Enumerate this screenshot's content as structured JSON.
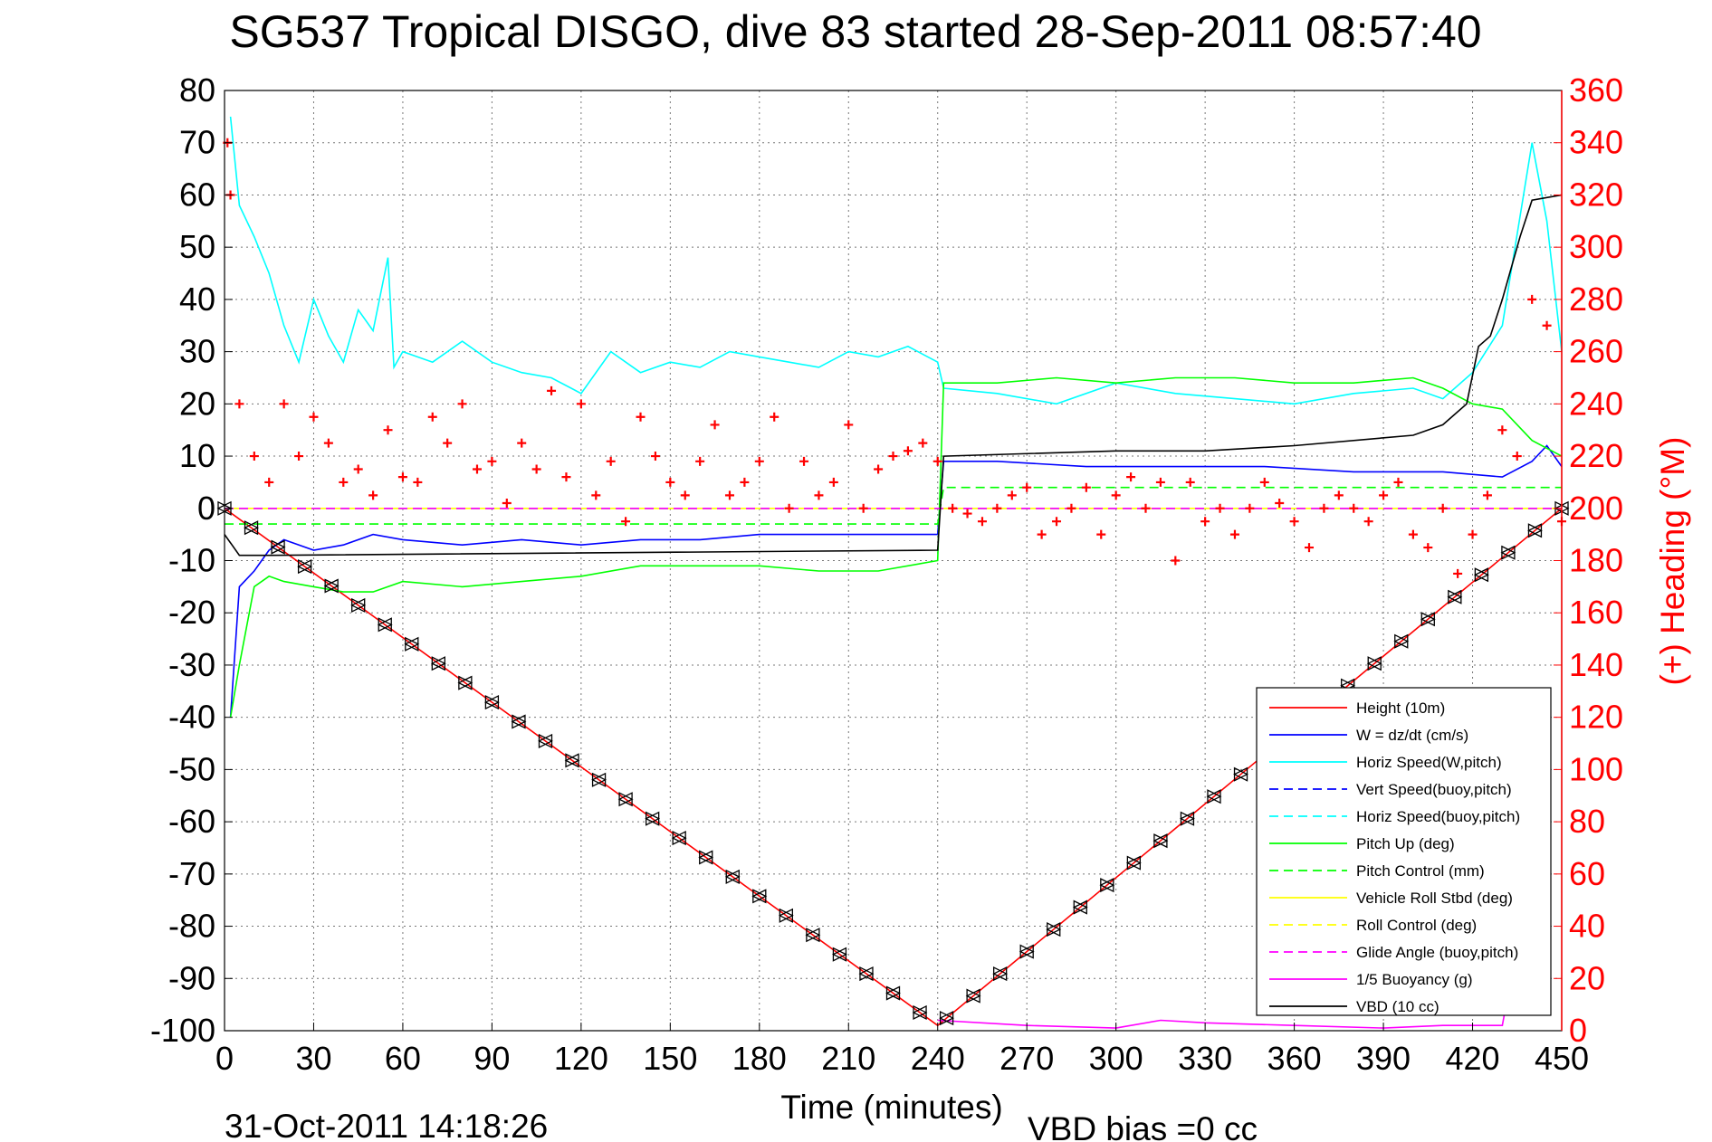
{
  "chart_data": {
    "type": "line",
    "title": "SG537 Tropical DISGO, dive 83 started 28-Sep-2011 08:57:40",
    "xlabel": "Time (minutes)",
    "ylabel_right": "(+) Heading (°M)",
    "footer_left": "31-Oct-2011 14:18:26",
    "footer_right": "VBD bias =0 cc",
    "xlim": [
      0,
      450
    ],
    "ylim": [
      -100,
      80
    ],
    "ylim_right": [
      0,
      360
    ],
    "xticks": [
      "0",
      "30",
      "60",
      "90",
      "120",
      "150",
      "180",
      "210",
      "240",
      "270",
      "300",
      "330",
      "360",
      "390",
      "420",
      "450"
    ],
    "yticks": [
      "80",
      "70",
      "60",
      "50",
      "40",
      "30",
      "20",
      "10",
      "0",
      "-10",
      "-20",
      "-30",
      "-40",
      "-50",
      "-60",
      "-70",
      "-80",
      "-90",
      "-100"
    ],
    "yticks_right": [
      "360",
      "340",
      "320",
      "300",
      "280",
      "260",
      "240",
      "220",
      "200",
      "180",
      "160",
      "140",
      "120",
      "100",
      "80",
      "60",
      "40",
      "20",
      "0"
    ],
    "grid": true,
    "legend_position": "lower-right",
    "colors": {
      "height": "#ff0000",
      "w": "#0000ff",
      "horiz_speed": "#00ffff",
      "pitch": "#00ff00",
      "roll": "#ffff00",
      "glide": "#ff00ff",
      "vbd": "#000000",
      "heading": "#ff0000",
      "right_axis": "#ff0000"
    },
    "series": [
      {
        "name": "Height (10m)",
        "style": "solid",
        "color": "#ff0000",
        "x": [
          0,
          240,
          450
        ],
        "y": [
          0,
          -99,
          0
        ]
      },
      {
        "name": "W = dz/dt (cm/s)",
        "style": "solid",
        "color": "#0000ff",
        "x": [
          2,
          5,
          10,
          15,
          20,
          30,
          40,
          50,
          60,
          80,
          100,
          120,
          140,
          160,
          180,
          200,
          220,
          240,
          242,
          260,
          290,
          320,
          350,
          380,
          410,
          430,
          440,
          445,
          450
        ],
        "y": [
          -40,
          -15,
          -12,
          -8,
          -6,
          -8,
          -7,
          -5,
          -6,
          -7,
          -6,
          -7,
          -6,
          -6,
          -5,
          -5,
          -5,
          -5,
          9,
          9,
          8,
          8,
          8,
          7,
          7,
          6,
          9,
          12,
          8
        ]
      },
      {
        "name": "Horiz Speed(W,pitch)",
        "style": "solid",
        "color": "#00ffff",
        "x": [
          2,
          5,
          10,
          15,
          20,
          25,
          30,
          35,
          40,
          45,
          50,
          55,
          57,
          60,
          70,
          80,
          90,
          100,
          110,
          120,
          130,
          140,
          150,
          160,
          170,
          180,
          190,
          200,
          210,
          220,
          230,
          240,
          242,
          260,
          280,
          300,
          320,
          340,
          360,
          380,
          400,
          410,
          420,
          430,
          440,
          445,
          450
        ],
        "y": [
          75,
          58,
          52,
          45,
          35,
          28,
          40,
          33,
          28,
          38,
          34,
          48,
          27,
          30,
          28,
          32,
          28,
          26,
          25,
          22,
          30,
          26,
          28,
          27,
          30,
          29,
          28,
          27,
          30,
          29,
          31,
          28,
          23,
          22,
          20,
          24,
          22,
          21,
          20,
          22,
          23,
          21,
          26,
          35,
          70,
          55,
          30
        ]
      },
      {
        "name": "Vert Speed(buoy,pitch)",
        "style": "dashed",
        "color": "#0000ff",
        "x": [
          0,
          450
        ],
        "y": [
          0,
          0
        ]
      },
      {
        "name": "Horiz Speed(buoy,pitch)",
        "style": "dashed",
        "color": "#00ffff",
        "x": [
          0,
          450
        ],
        "y": [
          0,
          0
        ]
      },
      {
        "name": "Pitch Up (deg)",
        "style": "solid",
        "color": "#00ff00",
        "x": [
          2,
          5,
          10,
          15,
          20,
          30,
          40,
          50,
          60,
          80,
          100,
          120,
          140,
          160,
          180,
          200,
          220,
          240,
          242,
          260,
          280,
          300,
          320,
          340,
          360,
          380,
          400,
          410,
          420,
          430,
          440,
          450
        ],
        "y": [
          -40,
          -30,
          -15,
          -13,
          -14,
          -15,
          -16,
          -16,
          -14,
          -15,
          -14,
          -13,
          -11,
          -11,
          -11,
          -12,
          -12,
          -10,
          24,
          24,
          25,
          24,
          25,
          25,
          24,
          24,
          25,
          23,
          20,
          19,
          13,
          10
        ]
      },
      {
        "name": "Pitch Control (mm)",
        "style": "dashed",
        "color": "#00ff00",
        "x": [
          0,
          60,
          120,
          180,
          240,
          242,
          300,
          360,
          420,
          450
        ],
        "y": [
          -3,
          -3,
          -3,
          -3,
          -3,
          4,
          4,
          4,
          4,
          4
        ]
      },
      {
        "name": "Vehicle Roll Stbd (deg)",
        "style": "solid",
        "color": "#ffff00",
        "x": [
          0,
          450
        ],
        "y": [
          0,
          0
        ]
      },
      {
        "name": "Roll Control (deg)",
        "style": "dashed",
        "color": "#ffff00",
        "x": [
          0,
          450
        ],
        "y": [
          0,
          0
        ]
      },
      {
        "name": "Glide Angle (buoy,pitch)",
        "style": "dashed",
        "color": "#ff00ff",
        "x": [
          0,
          450
        ],
        "y": [
          0,
          0
        ]
      },
      {
        "name": "1/5 Buoyancy (g)",
        "style": "solid",
        "color": "#ff00ff",
        "x": [
          240,
          270,
          300,
          315,
          330,
          360,
          390,
          410,
          430,
          445
        ],
        "y": [
          -98,
          -99,
          -99.5,
          -98,
          -98.5,
          -99,
          -99.5,
          -99,
          -99,
          -53
        ]
      },
      {
        "name": "VBD (10 cc)",
        "style": "solid",
        "color": "#000000",
        "x": [
          0,
          5,
          15,
          240,
          242,
          300,
          330,
          360,
          400,
          410,
          418,
          422,
          426,
          430,
          436,
          440,
          450
        ],
        "y": [
          -5,
          -9,
          -9,
          -8,
          10,
          11,
          11,
          12,
          14,
          16,
          20,
          31,
          33,
          40,
          52,
          59,
          60
        ]
      },
      {
        "name": "Heading (deg M)",
        "style": "markers",
        "axis": "right",
        "color": "#ff0000",
        "x": [
          1,
          2,
          5,
          10,
          15,
          20,
          25,
          30,
          35,
          40,
          45,
          50,
          55,
          60,
          65,
          70,
          75,
          80,
          85,
          90,
          95,
          100,
          105,
          110,
          115,
          120,
          125,
          130,
          135,
          140,
          145,
          150,
          155,
          160,
          165,
          170,
          175,
          180,
          185,
          190,
          195,
          200,
          205,
          210,
          215,
          220,
          225,
          230,
          235,
          240,
          245,
          250,
          255,
          260,
          265,
          270,
          275,
          280,
          285,
          290,
          295,
          300,
          305,
          310,
          315,
          320,
          325,
          330,
          335,
          340,
          345,
          350,
          355,
          360,
          365,
          370,
          375,
          380,
          385,
          390,
          395,
          400,
          405,
          410,
          415,
          420,
          425,
          430,
          435,
          440,
          445,
          450
        ],
        "y": [
          340,
          320,
          240,
          220,
          210,
          240,
          220,
          235,
          225,
          210,
          215,
          205,
          230,
          212,
          210,
          235,
          225,
          240,
          215,
          218,
          202,
          225,
          215,
          245,
          212,
          240,
          205,
          218,
          195,
          235,
          220,
          210,
          205,
          218,
          232,
          205,
          210,
          218,
          235,
          200,
          218,
          205,
          210,
          232,
          200,
          215,
          220,
          222,
          225,
          218,
          200,
          198,
          195,
          200,
          205,
          208,
          190,
          195,
          200,
          208,
          190,
          205,
          212,
          200,
          210,
          180,
          210,
          195,
          200,
          190,
          200,
          210,
          202,
          195,
          185,
          200,
          205,
          200,
          195,
          205,
          210,
          190,
          185,
          200,
          175,
          190,
          205,
          230,
          220,
          280,
          270,
          195
        ]
      }
    ]
  }
}
